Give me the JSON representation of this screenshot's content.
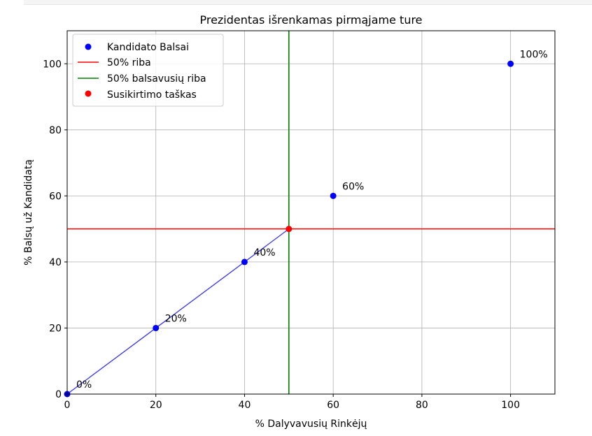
{
  "chart_data": {
    "type": "scatter",
    "title": "Prezidentas išrenkamas pirmąjame ture",
    "xlabel": "% Dalyvavusių Rinkėjų",
    "ylabel": "% Balsų už Kandidatą",
    "xlim": [
      0,
      110
    ],
    "ylim": [
      0,
      110
    ],
    "xticks": [
      0,
      20,
      40,
      60,
      80,
      100
    ],
    "yticks": [
      0,
      20,
      40,
      60,
      80,
      100
    ],
    "grid": true,
    "legend_position": "top-left",
    "series": [
      {
        "name": "Kandidato Balsai",
        "kind": "scatter",
        "color": "#0000ff",
        "points": [
          {
            "x": 0,
            "y": 0,
            "label": "0%"
          },
          {
            "x": 20,
            "y": 20,
            "label": "20%"
          },
          {
            "x": 40,
            "y": 40,
            "label": "40%"
          },
          {
            "x": 60,
            "y": 60,
            "label": "60%"
          },
          {
            "x": 100,
            "y": 100,
            "label": "100%"
          }
        ]
      },
      {
        "name": "50% riba",
        "kind": "hline",
        "y": 50,
        "color": "#ff0000"
      },
      {
        "name": "50% balsavusių riba",
        "kind": "vline",
        "x": 50,
        "color": "#008000"
      },
      {
        "name": "Susikirtimo taškas",
        "kind": "scatter",
        "color": "#ff0000",
        "points": [
          {
            "x": 50,
            "y": 50
          }
        ]
      }
    ],
    "connecting_line": {
      "color": "#3333ff",
      "x": [
        0,
        20,
        40,
        50
      ],
      "y": [
        0,
        20,
        40,
        50
      ]
    }
  }
}
